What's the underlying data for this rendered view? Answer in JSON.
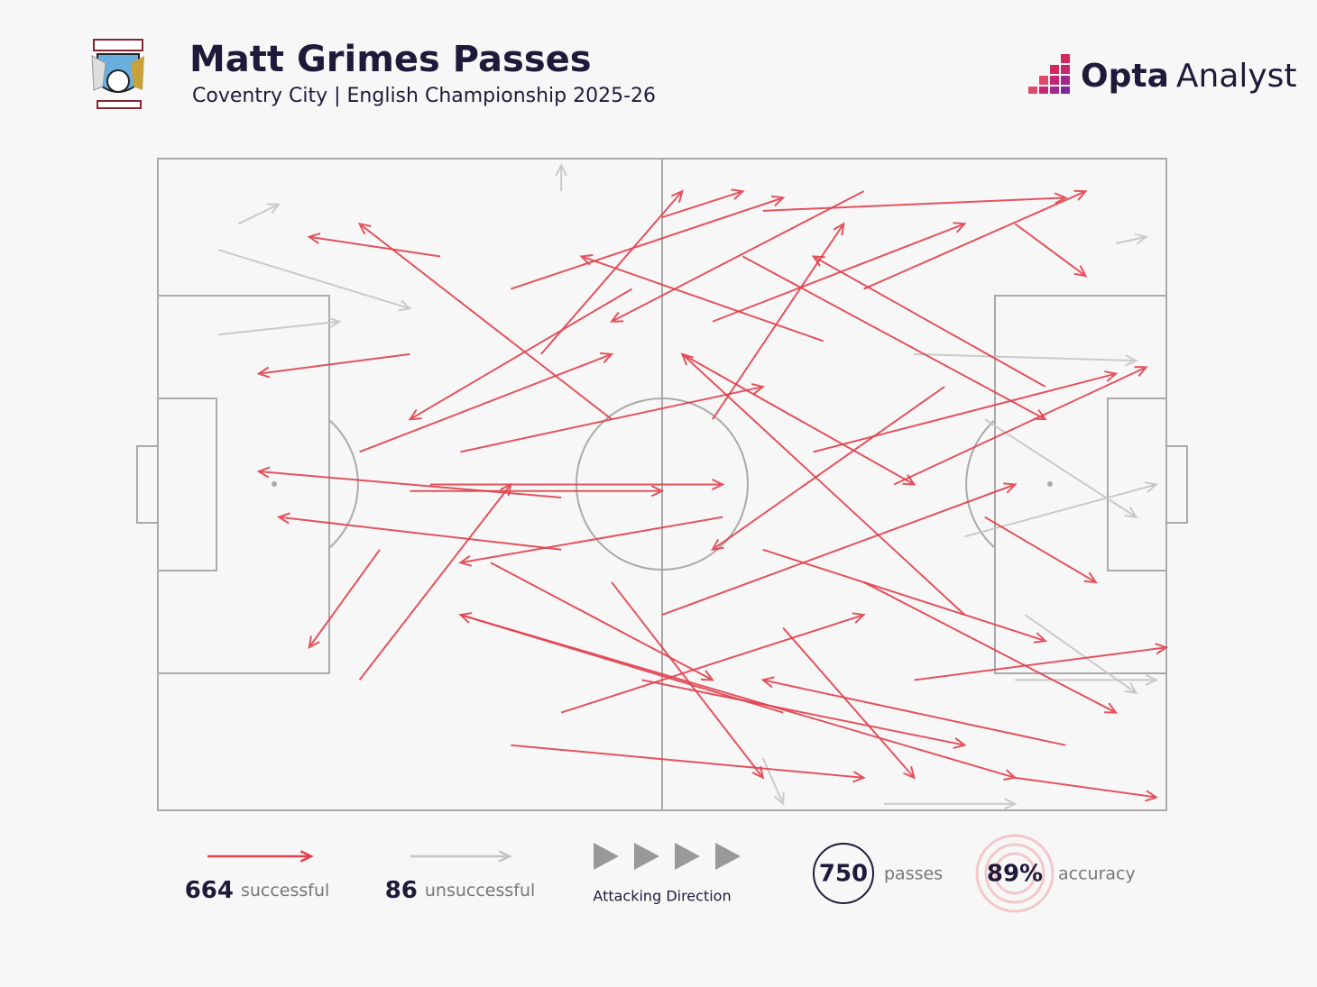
{
  "brand": {
    "word1": "Opta",
    "word2": "Analyst"
  },
  "chart_data": {
    "type": "pass-map",
    "title": "Matt Grimes Passes",
    "subtitle": "Coventry City | English Championship 2025-26",
    "xlim": [
      0,
      100
    ],
    "ylim": [
      0,
      100
    ],
    "series": [
      {
        "name": "successful",
        "count": 664,
        "color": "#e0404d",
        "passes": [
          [
            25,
            51,
            50,
            51
          ],
          [
            27,
            50,
            56,
            50
          ],
          [
            40,
            52,
            10,
            48
          ],
          [
            50,
            9,
            58,
            5
          ],
          [
            60,
            8,
            90,
            6
          ],
          [
            55,
            25,
            80,
            10
          ],
          [
            30,
            70,
            85,
            95
          ],
          [
            45,
            40,
            20,
            10
          ],
          [
            38,
            30,
            52,
            5
          ],
          [
            70,
            20,
            92,
            5
          ],
          [
            20,
            80,
            35,
            50
          ],
          [
            35,
            90,
            70,
            95
          ],
          [
            60,
            60,
            88,
            74
          ],
          [
            75,
            80,
            100,
            75
          ],
          [
            65,
            45,
            95,
            33
          ],
          [
            80,
            70,
            52,
            30
          ],
          [
            25,
            30,
            10,
            33
          ],
          [
            40,
            60,
            12,
            55
          ],
          [
            50,
            70,
            85,
            50
          ],
          [
            62,
            85,
            30,
            70
          ],
          [
            85,
            95,
            99,
            98
          ],
          [
            55,
            40,
            68,
            10
          ],
          [
            35,
            20,
            62,
            6
          ],
          [
            70,
            65,
            95,
            85
          ],
          [
            48,
            80,
            80,
            90
          ],
          [
            22,
            60,
            15,
            75
          ],
          [
            90,
            90,
            60,
            80
          ],
          [
            52,
            30,
            75,
            50
          ],
          [
            30,
            45,
            60,
            35
          ],
          [
            66,
            28,
            42,
            15
          ],
          [
            45,
            65,
            60,
            95
          ],
          [
            78,
            35,
            55,
            60
          ],
          [
            82,
            55,
            93,
            65
          ],
          [
            28,
            15,
            15,
            12
          ],
          [
            58,
            15,
            88,
            40
          ],
          [
            40,
            85,
            70,
            70
          ],
          [
            73,
            50,
            98,
            32
          ],
          [
            47,
            20,
            25,
            40
          ],
          [
            88,
            35,
            65,
            15
          ],
          [
            33,
            62,
            55,
            80
          ],
          [
            62,
            72,
            75,
            95
          ],
          [
            20,
            45,
            45,
            30
          ],
          [
            85,
            10,
            92,
            18
          ],
          [
            56,
            55,
            30,
            62
          ],
          [
            70,
            5,
            45,
            25
          ]
        ]
      },
      {
        "name": "unsuccessful",
        "count": 86,
        "color": "#c4c4c4",
        "passes": [
          [
            8,
            10,
            12,
            7
          ],
          [
            6,
            14,
            25,
            23
          ],
          [
            6,
            27,
            18,
            25
          ],
          [
            75,
            30,
            97,
            31
          ],
          [
            82,
            40,
            97,
            55
          ],
          [
            86,
            70,
            97,
            82
          ],
          [
            80,
            58,
            99,
            50
          ],
          [
            60,
            92,
            62,
            99
          ],
          [
            72,
            99,
            85,
            99
          ],
          [
            85,
            80,
            99,
            80
          ],
          [
            95,
            13,
            98,
            12
          ],
          [
            40,
            5,
            40,
            1
          ]
        ]
      }
    ],
    "direction_label": "Attacking Direction",
    "total": {
      "value": 750,
      "label": "passes"
    },
    "accuracy": {
      "value": 89,
      "value_label": "89%",
      "label": "accuracy"
    }
  }
}
